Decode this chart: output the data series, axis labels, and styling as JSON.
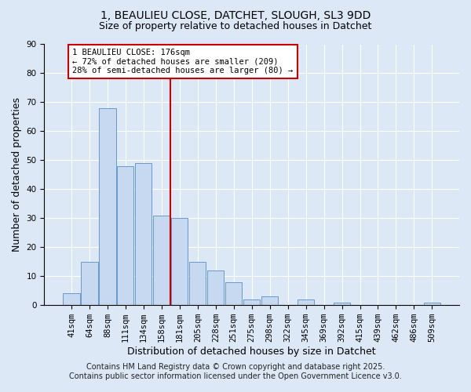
{
  "title": "1, BEAULIEU CLOSE, DATCHET, SLOUGH, SL3 9DD",
  "subtitle": "Size of property relative to detached houses in Datchet",
  "xlabel": "Distribution of detached houses by size in Datchet",
  "ylabel": "Number of detached properties",
  "bar_labels": [
    "41sqm",
    "64sqm",
    "88sqm",
    "111sqm",
    "134sqm",
    "158sqm",
    "181sqm",
    "205sqm",
    "228sqm",
    "251sqm",
    "275sqm",
    "298sqm",
    "322sqm",
    "345sqm",
    "369sqm",
    "392sqm",
    "415sqm",
    "439sqm",
    "462sqm",
    "486sqm",
    "509sqm"
  ],
  "bar_values": [
    4,
    15,
    68,
    48,
    49,
    31,
    30,
    15,
    12,
    8,
    2,
    3,
    0,
    2,
    0,
    1,
    0,
    0,
    0,
    0,
    1
  ],
  "bar_color": "#c6d9f1",
  "bar_edge_color": "#6699cc",
  "ylim": [
    0,
    90
  ],
  "vline_x": 5.5,
  "vline_color": "#cc0000",
  "annotation_title": "1 BEAULIEU CLOSE: 176sqm",
  "annotation_line1": "← 72% of detached houses are smaller (209)",
  "annotation_line2": "28% of semi-detached houses are larger (80) →",
  "annotation_box_color": "#cc0000",
  "footer1": "Contains HM Land Registry data © Crown copyright and database right 2025.",
  "footer2": "Contains public sector information licensed under the Open Government Licence v3.0.",
  "background_color": "#dce8f5",
  "plot_bg_color": "#dce8f5",
  "grid_color": "#ffffff",
  "title_fontsize": 10,
  "subtitle_fontsize": 9,
  "axis_label_fontsize": 9,
  "tick_fontsize": 7.5,
  "footer_fontsize": 7
}
